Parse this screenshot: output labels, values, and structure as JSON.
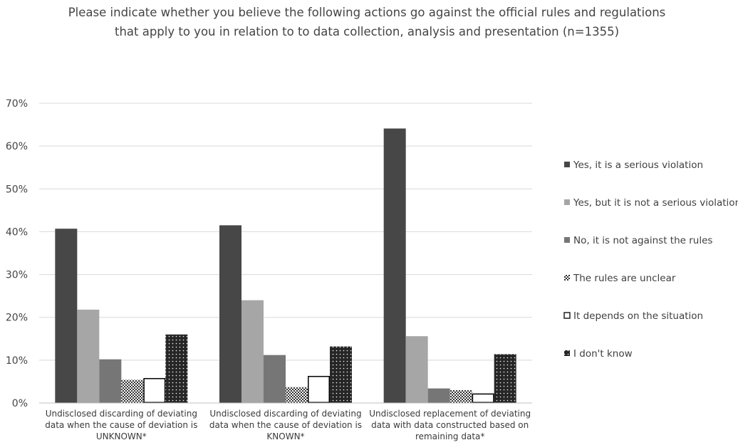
{
  "chart_data": {
    "type": "bar",
    "title_lines": [
      "Please indicate whether you believe the following actions go against the official rules and regulations",
      "that apply to you in relation to to data collection, analysis and presentation (n=1355)"
    ],
    "categories": [
      [
        "Undisclosed discarding of deviating",
        "data when the cause of deviation is",
        "UNKNOWN*"
      ],
      [
        "Undisclosed discarding of deviating",
        "data when the cause of deviation is",
        "KNOWN*"
      ],
      [
        "Undisclosed replacement of deviating",
        "data with data constructed based on",
        "remaining data*"
      ]
    ],
    "ylim": [
      0,
      70
    ],
    "yticks": [
      "0%",
      "10%",
      "20%",
      "30%",
      "40%",
      "50%",
      "60%",
      "70%"
    ],
    "grid": true,
    "legend_position": "right",
    "series": [
      {
        "name": "Yes, it is a serious violation",
        "values": [
          40.7,
          41.5,
          64.1
        ],
        "color": "#474747",
        "pattern": "solid"
      },
      {
        "name": "Yes, but it is not a serious violation",
        "values": [
          21.8,
          24.0,
          15.6
        ],
        "color": "#a6a6a6",
        "pattern": "solid"
      },
      {
        "name": "No, it is not against the rules",
        "values": [
          10.2,
          11.2,
          3.4
        ],
        "color": "#767676",
        "pattern": "solid"
      },
      {
        "name": "The rules are unclear",
        "values": [
          5.4,
          3.7,
          3.0
        ],
        "color": "#3a3a3a",
        "pattern": "checker"
      },
      {
        "name": "It depends on the situation",
        "values": [
          5.7,
          6.2,
          2.1
        ],
        "color": "#000000",
        "pattern": "outline"
      },
      {
        "name": "I don't know",
        "values": [
          16.0,
          13.2,
          11.4
        ],
        "color": "#262626",
        "pattern": "dots"
      }
    ]
  }
}
